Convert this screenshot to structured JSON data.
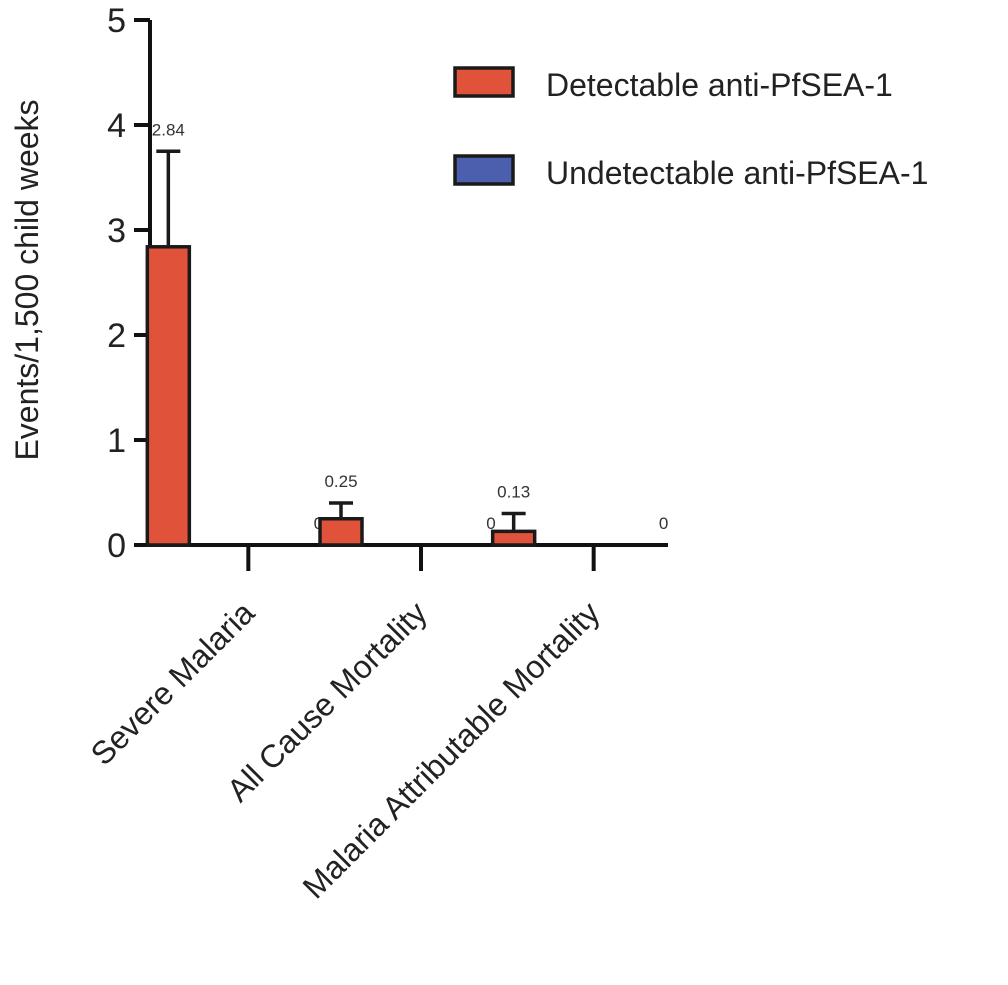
{
  "chart_data": {
    "type": "bar",
    "title": "",
    "xlabel": "",
    "ylabel": "Events/1,500 child weeks",
    "ylim": [
      0,
      5
    ],
    "yticks": [
      0,
      1,
      2,
      3,
      4,
      5
    ],
    "categories": [
      "Severe Malaria",
      "All Cause Mortality",
      "Malaria Attributable Mortality"
    ],
    "series": [
      {
        "name": "Detectable anti-PfSEA-1",
        "color": "#e0533a",
        "values": [
          2.84,
          0.25,
          0.13
        ],
        "error_upper": [
          3.75,
          0.4,
          0.3
        ],
        "labels": [
          "2.84",
          "0.25",
          "0.13"
        ]
      },
      {
        "name": "Undetectable anti-PfSEA-1",
        "color": "#4b5fae",
        "values": [
          0,
          0,
          0
        ],
        "labels": [
          "0",
          "0",
          "0"
        ]
      }
    ],
    "legend_position": "top-right",
    "grid": false
  }
}
